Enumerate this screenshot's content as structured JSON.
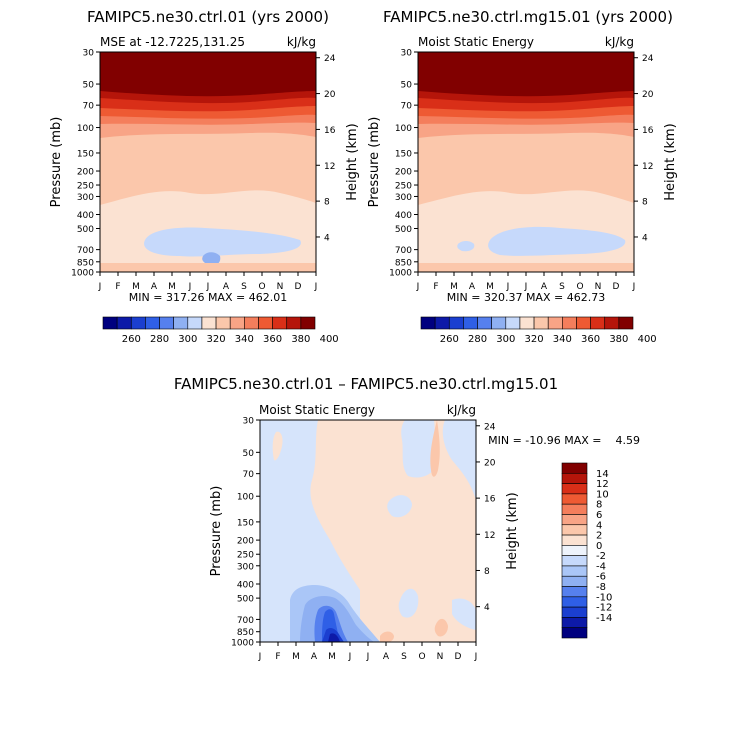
{
  "chart_data": [
    {
      "type": "heatmap",
      "title": "FAMIPC5.ne30.ctrl.01 (yrs 2000)",
      "subtitle_left": "MSE at -12.7225,131.25",
      "subtitle_right": "kJ/kg",
      "ylabel": "Pressure (mb)",
      "y2label": "Height (km)",
      "x_ticks": [
        "J",
        "F",
        "M",
        "A",
        "M",
        "J",
        "J",
        "A",
        "S",
        "O",
        "N",
        "D",
        "J"
      ],
      "y_ticks": [
        "30",
        "50",
        "70",
        "100",
        "150",
        "200",
        "250",
        "300",
        "400",
        "500",
        "700",
        "850",
        "1000"
      ],
      "y2_ticks": [
        "24",
        "20",
        "16",
        "12",
        "8",
        "4"
      ],
      "stats": "MIN = 317.26 MAX = 462.01",
      "min": 317.26,
      "max": 462.01,
      "colorbar_labels": [
        "260",
        "280",
        "300",
        "320",
        "340",
        "360",
        "380",
        "400"
      ]
    },
    {
      "type": "heatmap",
      "title": "FAMIPC5.ne30.ctrl.mg15.01 (yrs 2000)",
      "subtitle_left": "Moist Static Energy",
      "subtitle_right": "kJ/kg",
      "ylabel": "Pressure (mb)",
      "y2label": "Height (km)",
      "x_ticks": [
        "J",
        "F",
        "M",
        "A",
        "M",
        "J",
        "J",
        "A",
        "S",
        "O",
        "N",
        "D",
        "J"
      ],
      "y_ticks": [
        "30",
        "50",
        "70",
        "100",
        "150",
        "200",
        "250",
        "300",
        "400",
        "500",
        "700",
        "850",
        "1000"
      ],
      "y2_ticks": [
        "24",
        "20",
        "16",
        "12",
        "8",
        "4"
      ],
      "stats": "MIN = 320.37 MAX = 462.73",
      "min": 320.37,
      "max": 462.73,
      "colorbar_labels": [
        "260",
        "280",
        "300",
        "320",
        "340",
        "360",
        "380",
        "400"
      ]
    },
    {
      "type": "heatmap",
      "title": "FAMIPC5.ne30.ctrl.01 – FAMIPC5.ne30.ctrl.mg15.01",
      "subtitle_left": "Moist Static Energy",
      "subtitle_right": "kJ/kg",
      "ylabel": "Pressure (mb)",
      "y2label": "Height (km)",
      "x_ticks": [
        "J",
        "F",
        "M",
        "A",
        "M",
        "J",
        "J",
        "A",
        "S",
        "O",
        "N",
        "D",
        "J"
      ],
      "y_ticks": [
        "30",
        "50",
        "70",
        "100",
        "150",
        "200",
        "250",
        "300",
        "400",
        "500",
        "700",
        "850",
        "1000"
      ],
      "y2_ticks": [
        "24",
        "20",
        "16",
        "12",
        "8",
        "4"
      ],
      "stats": "MIN = -10.96 MAX =    4.59",
      "min": -10.96,
      "max": 4.59,
      "colorbar_labels": [
        "14",
        "12",
        "10",
        "8",
        "6",
        "4",
        "2",
        "0",
        "-2",
        "-4",
        "-6",
        "-8",
        "-10",
        "-12",
        "-14"
      ]
    }
  ],
  "colors": {
    "abs_scale": [
      "#00007f",
      "#0d1aa8",
      "#1b3fd0",
      "#2f5fe6",
      "#5680ee",
      "#8fb0f2",
      "#c6d9fb",
      "#fbe2d2",
      "#fbc7ab",
      "#f8a486",
      "#f47e5c",
      "#ee5a33",
      "#d92f18",
      "#b5150a",
      "#810000"
    ],
    "diff_scale": [
      "#810000",
      "#b5150a",
      "#d92f18",
      "#ee5a33",
      "#f47e5c",
      "#f8a486",
      "#fbc7ab",
      "#fbe2d2",
      "#eef3fb",
      "#c6d9fb",
      "#aac6f7",
      "#8fb0f2",
      "#5680ee",
      "#2f5fe6",
      "#1b3fd0",
      "#0d1aa8",
      "#00007f"
    ]
  }
}
